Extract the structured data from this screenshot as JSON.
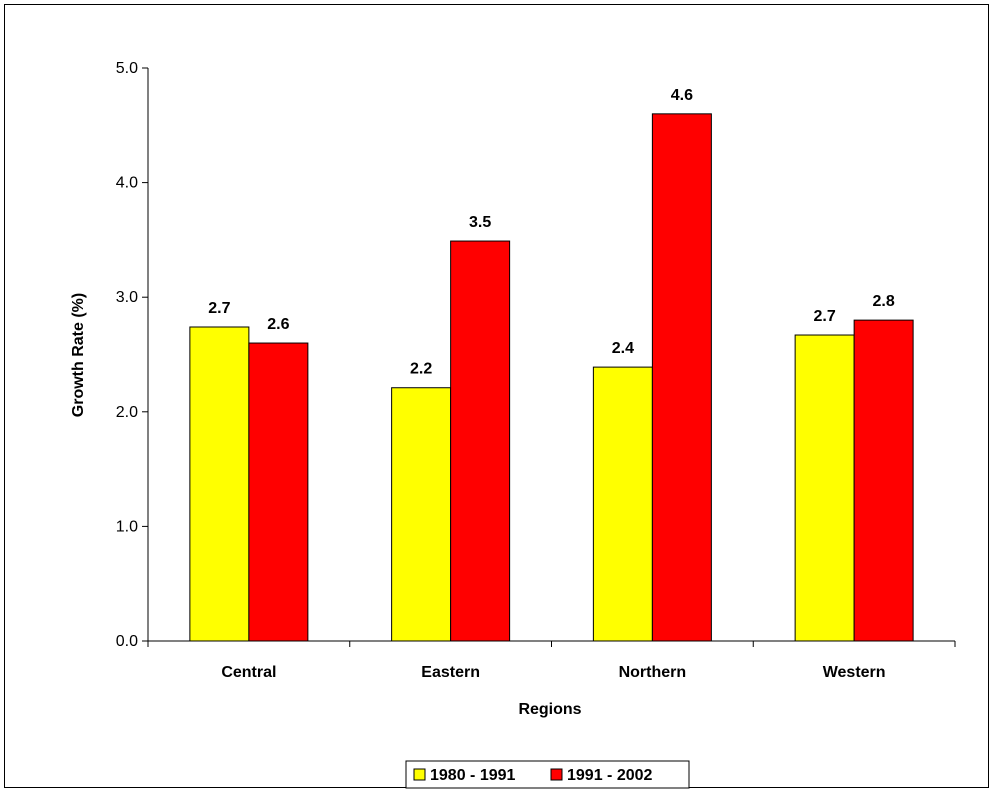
{
  "chart_data": {
    "type": "bar",
    "categories": [
      "Central",
      "Eastern",
      "Northern",
      "Western"
    ],
    "series": [
      {
        "name": "1980 - 1991",
        "values": [
          2.7,
          2.2,
          2.4,
          2.7
        ],
        "color": "#FFFF00"
      },
      {
        "name": "1991 - 2002",
        "values": [
          2.6,
          3.5,
          4.6,
          2.8
        ],
        "color": "#FF0000"
      }
    ],
    "data_labels": [
      [
        "2.7",
        "2.2",
        "2.4",
        "2.7"
      ],
      [
        "2.6",
        "3.5",
        "4.6",
        "2.8"
      ]
    ],
    "bar_values": [
      [
        2.74,
        2.21,
        2.39,
        2.67
      ],
      [
        2.6,
        3.49,
        4.6,
        2.8
      ]
    ],
    "title": "",
    "xlabel": "Regions",
    "ylabel": "Growth Rate (%)",
    "ylim": [
      0,
      5
    ],
    "yticks": [
      "0.0",
      "1.0",
      "2.0",
      "3.0",
      "4.0",
      "5.0"
    ],
    "legend_position": "bottom",
    "grid": false
  }
}
